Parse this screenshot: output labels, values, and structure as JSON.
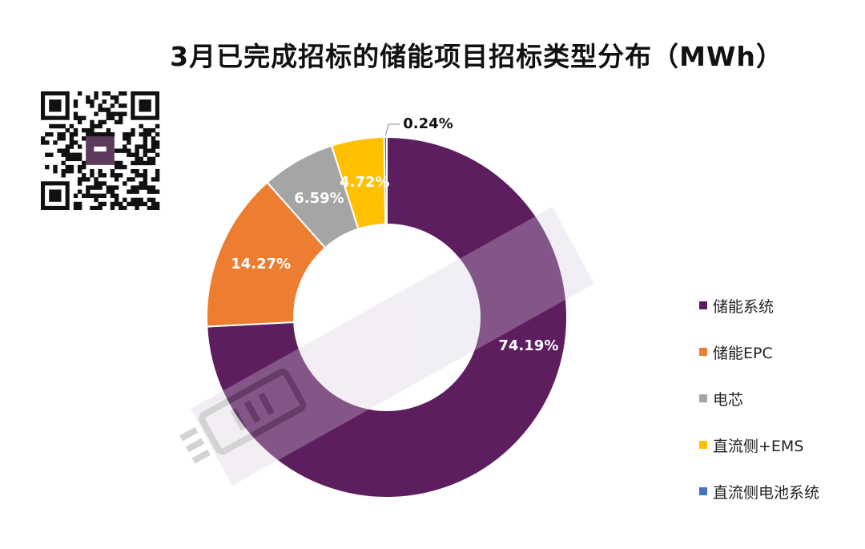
{
  "chart_data": {
    "type": "pie",
    "variant": "donut",
    "title": "3月已完成招标的储能项目招标类型分布（MWh）",
    "categories": [
      "储能系统",
      "储能EPC",
      "电芯",
      "直流侧+EMS",
      "直流侧电池系统"
    ],
    "values": [
      74.19,
      14.27,
      6.59,
      4.72,
      0.24
    ],
    "value_labels": [
      "74.19%",
      "14.27%",
      "6.59%",
      "4.72%",
      "0.24%"
    ],
    "colors": [
      "#5c1e5f",
      "#ed7d31",
      "#a5a5a5",
      "#ffc000",
      "#4472c4"
    ],
    "label_colors": [
      "#ffffff",
      "#ffffff",
      "#ffffff",
      "#ffffff",
      "#111111"
    ],
    "unit": "%",
    "legend_position": "right"
  }
}
